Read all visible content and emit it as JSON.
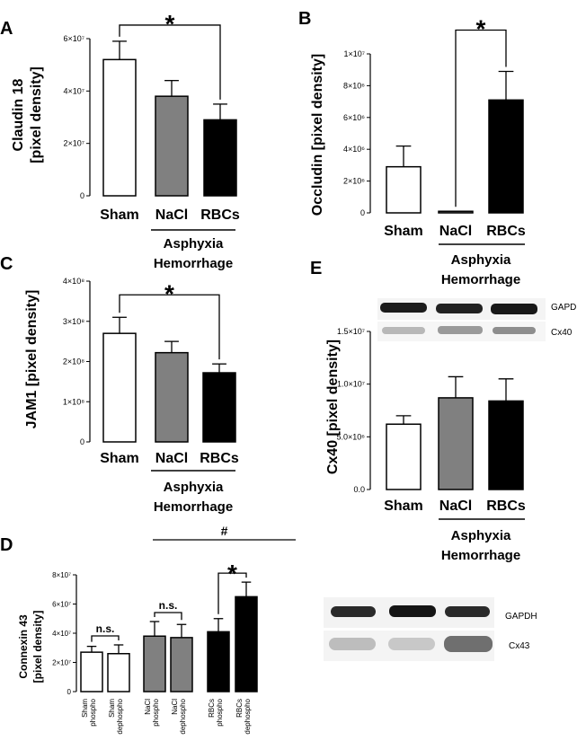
{
  "panel_labels": [
    "A",
    "B",
    "C",
    "E",
    "D"
  ],
  "group_label": [
    "Asphyxia",
    "Hemorrhage"
  ],
  "fill_colors": {
    "white": "#ffffff",
    "grey": "#808080",
    "black": "#000000"
  },
  "chart_data": [
    {
      "panel": "A",
      "type": "bar",
      "ylabel": [
        "Claudin 18",
        "[pixel density]"
      ],
      "categories": [
        "Sham",
        "NaCl",
        "RBCs"
      ],
      "values": [
        52000000,
        38000000,
        29000000
      ],
      "errors": [
        7000000,
        6000000,
        6000000
      ],
      "colors": [
        "white",
        "grey",
        "black"
      ],
      "ylim": [
        0,
        60000000
      ],
      "yticks": [
        0,
        20000000,
        40000000,
        60000000
      ],
      "ytick_labels": [
        "0",
        "2×10⁷",
        "4×10⁷",
        "6×10⁷"
      ],
      "annotations": [
        {
          "text": "*",
          "from": "Sham",
          "to": "RBCs"
        }
      ]
    },
    {
      "panel": "B",
      "type": "bar",
      "ylabel": [
        "Occludin [pixel density]"
      ],
      "categories": [
        "Sham",
        "NaCl",
        "RBCs"
      ],
      "values": [
        2900000,
        100000,
        7100000
      ],
      "errors": [
        1300000,
        0,
        1800000
      ],
      "colors": [
        "white",
        "grey",
        "black"
      ],
      "ylim": [
        0,
        10000000
      ],
      "yticks": [
        0,
        2000000,
        4000000,
        6000000,
        8000000,
        10000000
      ],
      "ytick_labels": [
        "0",
        "2×10⁶",
        "4×10⁶",
        "6×10⁶",
        "8×10⁶",
        "1×10⁷"
      ],
      "annotations": [
        {
          "text": "*",
          "from": "NaCl",
          "to": "RBCs"
        }
      ]
    },
    {
      "panel": "C",
      "type": "bar",
      "ylabel": [
        "JAM1 [pixel density]"
      ],
      "categories": [
        "Sham",
        "NaCl",
        "RBCs"
      ],
      "values": [
        270000000,
        222000000,
        172000000
      ],
      "errors": [
        40000000,
        28000000,
        22000000
      ],
      "colors": [
        "white",
        "grey",
        "black"
      ],
      "ylim": [
        0,
        400000000
      ],
      "yticks": [
        0,
        100000000,
        200000000,
        300000000,
        400000000
      ],
      "ytick_labels": [
        "0",
        "1×10⁸",
        "2×10⁸",
        "3×10⁸",
        "4×10⁸"
      ],
      "annotations": [
        {
          "text": "*",
          "from": "Sham",
          "to": "RBCs"
        }
      ]
    },
    {
      "panel": "E",
      "type": "bar",
      "ylabel": [
        "Cx40 [pixel density]"
      ],
      "categories": [
        "Sham",
        "NaCl",
        "RBCs"
      ],
      "values": [
        6200000,
        8700000,
        8400000
      ],
      "errors": [
        800000,
        2000000,
        2100000
      ],
      "colors": [
        "white",
        "grey",
        "black"
      ],
      "ylim": [
        0,
        15000000
      ],
      "yticks": [
        0,
        5000000,
        10000000,
        15000000
      ],
      "ytick_labels": [
        "0.0",
        "5.0×10⁶",
        "1.0×10⁷",
        "1.5×10⁷"
      ],
      "annotations": [],
      "blot_labels": [
        "GAPDH",
        "Cx40"
      ]
    },
    {
      "panel": "D",
      "type": "bar",
      "ylabel": [
        "Connexin 43",
        "[pixel density]"
      ],
      "categories": [
        [
          "Sham",
          "phospho"
        ],
        [
          "Sham",
          "dephospho"
        ],
        [
          "NaCl",
          "phospho"
        ],
        [
          "NaCl",
          "dephospho"
        ],
        [
          "RBCs",
          "phospho"
        ],
        [
          "RBCs",
          "dephospho"
        ]
      ],
      "values": [
        27000000,
        26000000,
        38000000,
        37000000,
        41000000,
        65000000
      ],
      "errors": [
        4000000,
        6000000,
        10000000,
        9000000,
        9000000,
        10000000
      ],
      "colors": [
        "white",
        "white",
        "grey",
        "grey",
        "black",
        "black"
      ],
      "ylim": [
        0,
        80000000
      ],
      "yticks": [
        0,
        20000000,
        40000000,
        60000000,
        80000000
      ],
      "ytick_labels": [
        "0",
        "2×10⁷",
        "4×10⁷",
        "6×10⁷",
        "8×10⁷"
      ],
      "annotations": [
        {
          "text": "n.s.",
          "from": 0,
          "to": 1
        },
        {
          "text": "n.s.",
          "from": 2,
          "to": 3
        },
        {
          "text": "*",
          "from": 4,
          "to": 5
        },
        {
          "text": "#",
          "from": 0,
          "to": 5
        }
      ],
      "blot_labels": [
        "GAPDH",
        "Cx43"
      ]
    }
  ]
}
